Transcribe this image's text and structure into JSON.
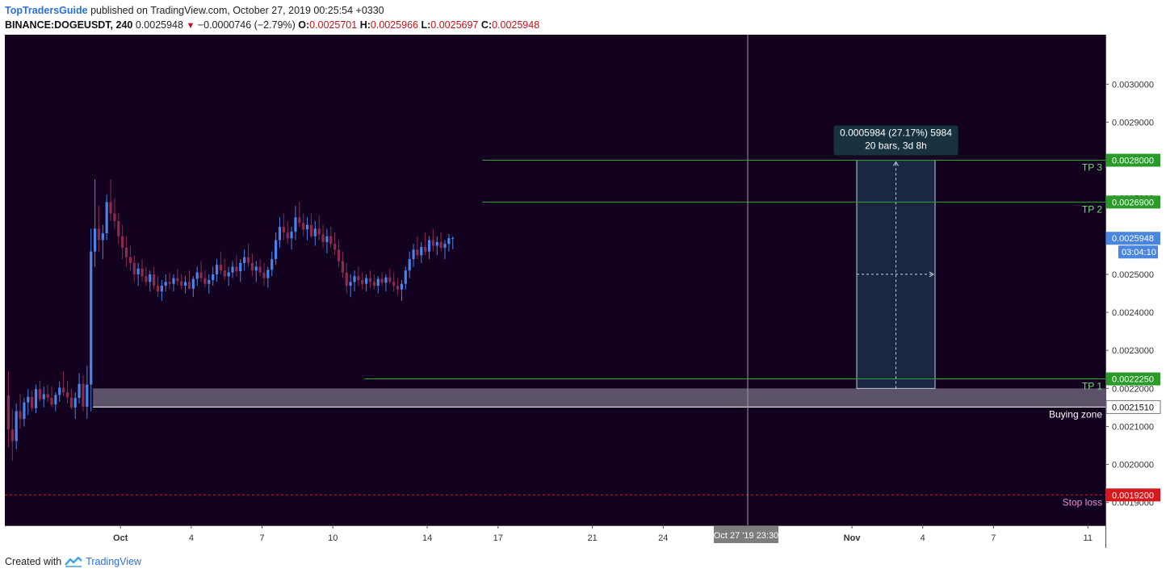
{
  "header": {
    "author": "TopTradersGuide",
    "published": "published on TradingView.com, October 27, 2019 00:25:54 +0330",
    "symbol": "BINANCE:DOGEUSDT, 240",
    "last": "0.0025948",
    "change": "−0.0000746 (−2.79%)",
    "o_label": "O:",
    "o": "0.0025701",
    "h_label": "H:",
    "h": "0.0025966",
    "l_label": "L:",
    "l": "0.0025697",
    "c_label": "C:",
    "c": "0.0025948"
  },
  "footer": {
    "created": "Created with",
    "brand": "TradingView"
  },
  "colors": {
    "background": "#12021f",
    "up": "#4b83e6",
    "down": "#8b2c4f",
    "tp_line": "#2fa72f",
    "stop_line": "#c8242c",
    "zone": "#6a6077",
    "measure": "#1b2a44",
    "measure_label": "#183240"
  },
  "chart_data": {
    "type": "candlestick",
    "timeframe": "240",
    "y_axis": {
      "range": [
        0.00184,
        0.00313
      ],
      "ticks": [
        "0.0019000",
        "0.0020000",
        "0.0021000",
        "0.0022000",
        "0.0023000",
        "0.0024000",
        "0.0025000",
        "0.0026000",
        "0.0027000",
        "0.0028000",
        "0.0029000",
        "0.0030000"
      ]
    },
    "x_axis": {
      "ticks": [
        {
          "label": "Oct",
          "bar": 29,
          "bold": true
        },
        {
          "label": "4",
          "bar": 47
        },
        {
          "label": "7",
          "bar": 65
        },
        {
          "label": "10",
          "bar": 83
        },
        {
          "label": "14",
          "bar": 107
        },
        {
          "label": "17",
          "bar": 125
        },
        {
          "label": "21",
          "bar": 149
        },
        {
          "label": "24",
          "bar": 167
        },
        {
          "label": "28",
          "bar": 191
        },
        {
          "label": "Nov",
          "bar": 215,
          "bold": true
        },
        {
          "label": "4",
          "bar": 233
        },
        {
          "label": "7",
          "bar": 251
        },
        {
          "label": "11",
          "bar": 275
        }
      ],
      "crosshair_label": "Oct 27 '19  23:30",
      "total_bars": 280
    },
    "candles": [
      {
        "o": 0.002182,
        "h": 0.002245,
        "l": 0.002045,
        "c": 0.002092
      },
      {
        "o": 0.002092,
        "h": 0.002145,
        "l": 0.00201,
        "c": 0.002062
      },
      {
        "o": 0.002062,
        "h": 0.00216,
        "l": 0.00204,
        "c": 0.00214
      },
      {
        "o": 0.00214,
        "h": 0.002185,
        "l": 0.002095,
        "c": 0.00212
      },
      {
        "o": 0.00212,
        "h": 0.002175,
        "l": 0.0021,
        "c": 0.002163
      },
      {
        "o": 0.002163,
        "h": 0.002198,
        "l": 0.00213,
        "c": 0.002178
      },
      {
        "o": 0.002178,
        "h": 0.002195,
        "l": 0.00214,
        "c": 0.002148
      },
      {
        "o": 0.002148,
        "h": 0.00221,
        "l": 0.002135,
        "c": 0.002198
      },
      {
        "o": 0.002198,
        "h": 0.00222,
        "l": 0.002165,
        "c": 0.002172
      },
      {
        "o": 0.002172,
        "h": 0.002205,
        "l": 0.00215,
        "c": 0.002185
      },
      {
        "o": 0.002185,
        "h": 0.00221,
        "l": 0.002165,
        "c": 0.002175
      },
      {
        "o": 0.002175,
        "h": 0.002205,
        "l": 0.00215,
        "c": 0.002158
      },
      {
        "o": 0.002158,
        "h": 0.00219,
        "l": 0.00214,
        "c": 0.002183
      },
      {
        "o": 0.002183,
        "h": 0.002218,
        "l": 0.002165,
        "c": 0.002202
      },
      {
        "o": 0.002202,
        "h": 0.002245,
        "l": 0.00218,
        "c": 0.00219
      },
      {
        "o": 0.00219,
        "h": 0.00222,
        "l": 0.00216,
        "c": 0.002176
      },
      {
        "o": 0.002176,
        "h": 0.0022,
        "l": 0.002145,
        "c": 0.00215
      },
      {
        "o": 0.00215,
        "h": 0.00219,
        "l": 0.00212,
        "c": 0.002175
      },
      {
        "o": 0.002175,
        "h": 0.00224,
        "l": 0.00216,
        "c": 0.002212
      },
      {
        "o": 0.002212,
        "h": 0.002235,
        "l": 0.00214,
        "c": 0.002152
      },
      {
        "o": 0.002152,
        "h": 0.00226,
        "l": 0.00212,
        "c": 0.00221
      },
      {
        "o": 0.00221,
        "h": 0.00262,
        "l": 0.00214,
        "c": 0.00256
      },
      {
        "o": 0.00256,
        "h": 0.00275,
        "l": 0.00252,
        "c": 0.00262
      },
      {
        "o": 0.00262,
        "h": 0.00268,
        "l": 0.00256,
        "c": 0.00259
      },
      {
        "o": 0.00259,
        "h": 0.00263,
        "l": 0.00254,
        "c": 0.002608
      },
      {
        "o": 0.002608,
        "h": 0.00271,
        "l": 0.00259,
        "c": 0.00269
      },
      {
        "o": 0.00269,
        "h": 0.00275,
        "l": 0.00264,
        "c": 0.00266
      },
      {
        "o": 0.00266,
        "h": 0.0027,
        "l": 0.00262,
        "c": 0.00264
      },
      {
        "o": 0.00264,
        "h": 0.00266,
        "l": 0.00258,
        "c": 0.0026
      },
      {
        "o": 0.0026,
        "h": 0.00263,
        "l": 0.00254,
        "c": 0.00257
      },
      {
        "o": 0.00257,
        "h": 0.0026,
        "l": 0.00252,
        "c": 0.002545
      },
      {
        "o": 0.002545,
        "h": 0.002575,
        "l": 0.00251,
        "c": 0.00253
      },
      {
        "o": 0.00253,
        "h": 0.00255,
        "l": 0.00248,
        "c": 0.0025
      },
      {
        "o": 0.0025,
        "h": 0.00253,
        "l": 0.00247,
        "c": 0.002515
      },
      {
        "o": 0.002515,
        "h": 0.00254,
        "l": 0.00248,
        "c": 0.002495
      },
      {
        "o": 0.002495,
        "h": 0.00252,
        "l": 0.00247,
        "c": 0.00248
      },
      {
        "o": 0.00248,
        "h": 0.00251,
        "l": 0.002455,
        "c": 0.0025
      },
      {
        "o": 0.0025,
        "h": 0.00252,
        "l": 0.00246,
        "c": 0.00247
      },
      {
        "o": 0.00247,
        "h": 0.002495,
        "l": 0.00244,
        "c": 0.002455
      },
      {
        "o": 0.002455,
        "h": 0.002485,
        "l": 0.00243,
        "c": 0.00247
      },
      {
        "o": 0.00247,
        "h": 0.0025,
        "l": 0.002455,
        "c": 0.00248
      },
      {
        "o": 0.00248,
        "h": 0.002505,
        "l": 0.00246,
        "c": 0.002475
      },
      {
        "o": 0.002475,
        "h": 0.0025,
        "l": 0.002455,
        "c": 0.00249
      },
      {
        "o": 0.00249,
        "h": 0.002515,
        "l": 0.00247,
        "c": 0.002482
      },
      {
        "o": 0.002482,
        "h": 0.0025,
        "l": 0.00246,
        "c": 0.00247
      },
      {
        "o": 0.00247,
        "h": 0.002495,
        "l": 0.00245,
        "c": 0.00248
      },
      {
        "o": 0.00248,
        "h": 0.00251,
        "l": 0.00246,
        "c": 0.002462
      },
      {
        "o": 0.002462,
        "h": 0.002495,
        "l": 0.00244,
        "c": 0.002488
      },
      {
        "o": 0.002488,
        "h": 0.00252,
        "l": 0.00247,
        "c": 0.002505
      },
      {
        "o": 0.002505,
        "h": 0.002535,
        "l": 0.00248,
        "c": 0.00249
      },
      {
        "o": 0.00249,
        "h": 0.00251,
        "l": 0.002465,
        "c": 0.002475
      },
      {
        "o": 0.002475,
        "h": 0.0025,
        "l": 0.00245,
        "c": 0.002485
      },
      {
        "o": 0.002485,
        "h": 0.00252,
        "l": 0.00247,
        "c": 0.0025
      },
      {
        "o": 0.0025,
        "h": 0.00254,
        "l": 0.00248,
        "c": 0.002525
      },
      {
        "o": 0.002525,
        "h": 0.00256,
        "l": 0.0025,
        "c": 0.00251
      },
      {
        "o": 0.00251,
        "h": 0.00254,
        "l": 0.002485,
        "c": 0.002495
      },
      {
        "o": 0.002495,
        "h": 0.00252,
        "l": 0.00247,
        "c": 0.002505
      },
      {
        "o": 0.002505,
        "h": 0.002535,
        "l": 0.00249,
        "c": 0.00252
      },
      {
        "o": 0.00252,
        "h": 0.00255,
        "l": 0.002495,
        "c": 0.002508
      },
      {
        "o": 0.002508,
        "h": 0.00254,
        "l": 0.00248,
        "c": 0.00253
      },
      {
        "o": 0.00253,
        "h": 0.002565,
        "l": 0.00251,
        "c": 0.002545
      },
      {
        "o": 0.002545,
        "h": 0.00258,
        "l": 0.00252,
        "c": 0.00253
      },
      {
        "o": 0.00253,
        "h": 0.002555,
        "l": 0.002495,
        "c": 0.00251
      },
      {
        "o": 0.00251,
        "h": 0.002535,
        "l": 0.00248,
        "c": 0.00252
      },
      {
        "o": 0.00252,
        "h": 0.00254,
        "l": 0.002495,
        "c": 0.002505
      },
      {
        "o": 0.002505,
        "h": 0.00253,
        "l": 0.00247,
        "c": 0.00249
      },
      {
        "o": 0.00249,
        "h": 0.00252,
        "l": 0.002465,
        "c": 0.002512
      },
      {
        "o": 0.002512,
        "h": 0.00256,
        "l": 0.002495,
        "c": 0.00254
      },
      {
        "o": 0.00254,
        "h": 0.00261,
        "l": 0.002525,
        "c": 0.00259
      },
      {
        "o": 0.00259,
        "h": 0.00265,
        "l": 0.00257,
        "c": 0.002625
      },
      {
        "o": 0.002625,
        "h": 0.00266,
        "l": 0.00259,
        "c": 0.00261
      },
      {
        "o": 0.00261,
        "h": 0.00264,
        "l": 0.00258,
        "c": 0.002595
      },
      {
        "o": 0.002595,
        "h": 0.002625,
        "l": 0.002565,
        "c": 0.002612
      },
      {
        "o": 0.002612,
        "h": 0.00268,
        "l": 0.00259,
        "c": 0.00265
      },
      {
        "o": 0.00265,
        "h": 0.00269,
        "l": 0.002625,
        "c": 0.002635
      },
      {
        "o": 0.002635,
        "h": 0.00266,
        "l": 0.0026,
        "c": 0.002618
      },
      {
        "o": 0.002618,
        "h": 0.00265,
        "l": 0.00259,
        "c": 0.00263
      },
      {
        "o": 0.00263,
        "h": 0.00266,
        "l": 0.002595,
        "c": 0.0026
      },
      {
        "o": 0.0026,
        "h": 0.00264,
        "l": 0.002575,
        "c": 0.00262
      },
      {
        "o": 0.00262,
        "h": 0.002655,
        "l": 0.00259,
        "c": 0.002605
      },
      {
        "o": 0.002605,
        "h": 0.00263,
        "l": 0.00257,
        "c": 0.002585
      },
      {
        "o": 0.002585,
        "h": 0.00262,
        "l": 0.002555,
        "c": 0.0026
      },
      {
        "o": 0.0026,
        "h": 0.002625,
        "l": 0.00257,
        "c": 0.00258
      },
      {
        "o": 0.00258,
        "h": 0.00261,
        "l": 0.00255,
        "c": 0.002565
      },
      {
        "o": 0.002565,
        "h": 0.00259,
        "l": 0.00252,
        "c": 0.002535
      },
      {
        "o": 0.002535,
        "h": 0.00256,
        "l": 0.00249,
        "c": 0.002505
      },
      {
        "o": 0.002505,
        "h": 0.00253,
        "l": 0.00245,
        "c": 0.00247
      },
      {
        "o": 0.00247,
        "h": 0.0025,
        "l": 0.00244,
        "c": 0.00248
      },
      {
        "o": 0.00248,
        "h": 0.00251,
        "l": 0.002455,
        "c": 0.002495
      },
      {
        "o": 0.002495,
        "h": 0.00252,
        "l": 0.00247,
        "c": 0.002485
      },
      {
        "o": 0.002485,
        "h": 0.002505,
        "l": 0.00246,
        "c": 0.002475
      },
      {
        "o": 0.002475,
        "h": 0.0025,
        "l": 0.002455,
        "c": 0.00249
      },
      {
        "o": 0.00249,
        "h": 0.00251,
        "l": 0.002465,
        "c": 0.00248
      },
      {
        "o": 0.00248,
        "h": 0.0025,
        "l": 0.00246,
        "c": 0.00247
      },
      {
        "o": 0.00247,
        "h": 0.002495,
        "l": 0.00245,
        "c": 0.002488
      },
      {
        "o": 0.002488,
        "h": 0.002505,
        "l": 0.00247,
        "c": 0.002478
      },
      {
        "o": 0.002478,
        "h": 0.0025,
        "l": 0.002455,
        "c": 0.002492
      },
      {
        "o": 0.002492,
        "h": 0.002515,
        "l": 0.002475,
        "c": 0.00248
      },
      {
        "o": 0.00248,
        "h": 0.002505,
        "l": 0.002455,
        "c": 0.00247
      },
      {
        "o": 0.00247,
        "h": 0.00249,
        "l": 0.002445,
        "c": 0.00246
      },
      {
        "o": 0.00246,
        "h": 0.002485,
        "l": 0.00243,
        "c": 0.002475
      },
      {
        "o": 0.002475,
        "h": 0.00252,
        "l": 0.00246,
        "c": 0.00251
      },
      {
        "o": 0.00251,
        "h": 0.00256,
        "l": 0.00249,
        "c": 0.00254
      },
      {
        "o": 0.00254,
        "h": 0.00258,
        "l": 0.00252,
        "c": 0.002565
      },
      {
        "o": 0.002565,
        "h": 0.0026,
        "l": 0.00254,
        "c": 0.00255
      },
      {
        "o": 0.00255,
        "h": 0.002585,
        "l": 0.00253,
        "c": 0.002572
      },
      {
        "o": 0.002572,
        "h": 0.00261,
        "l": 0.00255,
        "c": 0.00256
      },
      {
        "o": 0.00256,
        "h": 0.0026,
        "l": 0.00254,
        "c": 0.00259
      },
      {
        "o": 0.00259,
        "h": 0.00262,
        "l": 0.00256,
        "c": 0.002575
      },
      {
        "o": 0.002575,
        "h": 0.0026,
        "l": 0.00255,
        "c": 0.002585
      },
      {
        "o": 0.002585,
        "h": 0.00261,
        "l": 0.00256,
        "c": 0.00257
      },
      {
        "o": 0.00257,
        "h": 0.00259,
        "l": 0.00254,
        "c": 0.00258
      },
      {
        "o": 0.00258,
        "h": 0.002606,
        "l": 0.00256,
        "c": 0.002595
      },
      {
        "o": 0.002595,
        "h": 0.0026,
        "l": 0.002566,
        "c": 0.002595
      }
    ],
    "annotations": {
      "tp_lines": [
        {
          "label": "TP 3",
          "price": 0.0028,
          "price_label": "0.0028000"
        },
        {
          "label": "TP 2",
          "price": 0.00269,
          "price_label": "0.0026900"
        },
        {
          "label": "TP  1",
          "price": 0.002225,
          "price_label": "0.0022250"
        }
      ],
      "buying_zone": {
        "label": "Buying zone",
        "top": 0.0022,
        "bottom": 0.002151,
        "price_label": "0.0021510"
      },
      "stop_loss": {
        "label": "Stop loss",
        "price": 0.00192,
        "price_label": "0.0019200"
      },
      "last_price": {
        "price": 0.0025948,
        "price_label": "0.0025948",
        "countdown": "03:04:10"
      },
      "measure": {
        "price_low": 0.0022,
        "price_high": 0.0028,
        "text_line1": "0.0005984 (27.17%) 5984",
        "text_line2": "20 bars, 3d 8h"
      }
    }
  }
}
